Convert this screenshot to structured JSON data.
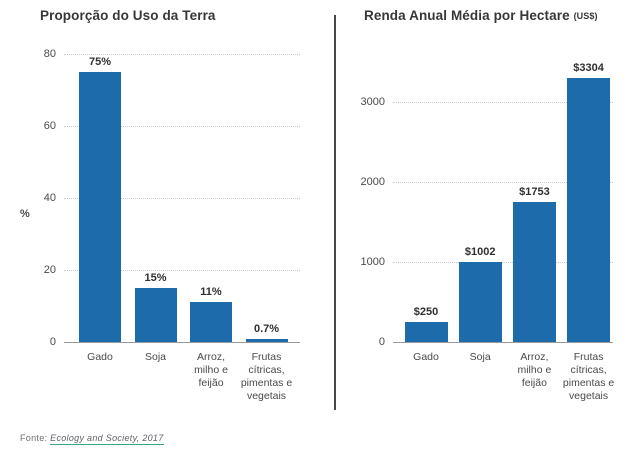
{
  "page": {
    "background": "#ffffff",
    "divider_color": "#474747"
  },
  "chart_data": [
    {
      "type": "bar",
      "title": "Proporção do Uso da Terra",
      "ylabel": "%",
      "categories": [
        [
          "Gado"
        ],
        [
          "Soja"
        ],
        [
          "Arroz,",
          "milho e",
          "feijão"
        ],
        [
          "Frutas",
          "cítricas,",
          "pimentas e",
          "vegetais"
        ]
      ],
      "values": [
        75,
        15,
        11,
        0.7
      ],
      "value_labels": [
        "75%",
        "15%",
        "11%",
        "0.7%"
      ],
      "yticks": [
        0,
        20,
        40,
        60,
        80
      ],
      "ylim": [
        0,
        80
      ],
      "grid": true,
      "legend": "none",
      "bar_color": "#1e6bac"
    },
    {
      "type": "bar",
      "title": "Renda Anual Média por Hectare",
      "title_suffix": "(US$)",
      "ylabel": "",
      "categories": [
        [
          "Gado"
        ],
        [
          "Soja"
        ],
        [
          "Arroz,",
          "milho e",
          "feijão"
        ],
        [
          "Frutas",
          "cítricas,",
          "pimentas e",
          "vegetais"
        ]
      ],
      "values": [
        250,
        1002,
        1753,
        3304
      ],
      "value_labels": [
        "$250",
        "$1002",
        "$1753",
        "$3304"
      ],
      "yticks": [
        0,
        1000,
        2000,
        3000
      ],
      "ylim": [
        0,
        3600
      ],
      "grid": true,
      "legend": "none",
      "bar_color": "#1e6bac"
    }
  ],
  "footer": {
    "prefix": "Fonte:",
    "link": "Ecology and Society, 2017"
  }
}
